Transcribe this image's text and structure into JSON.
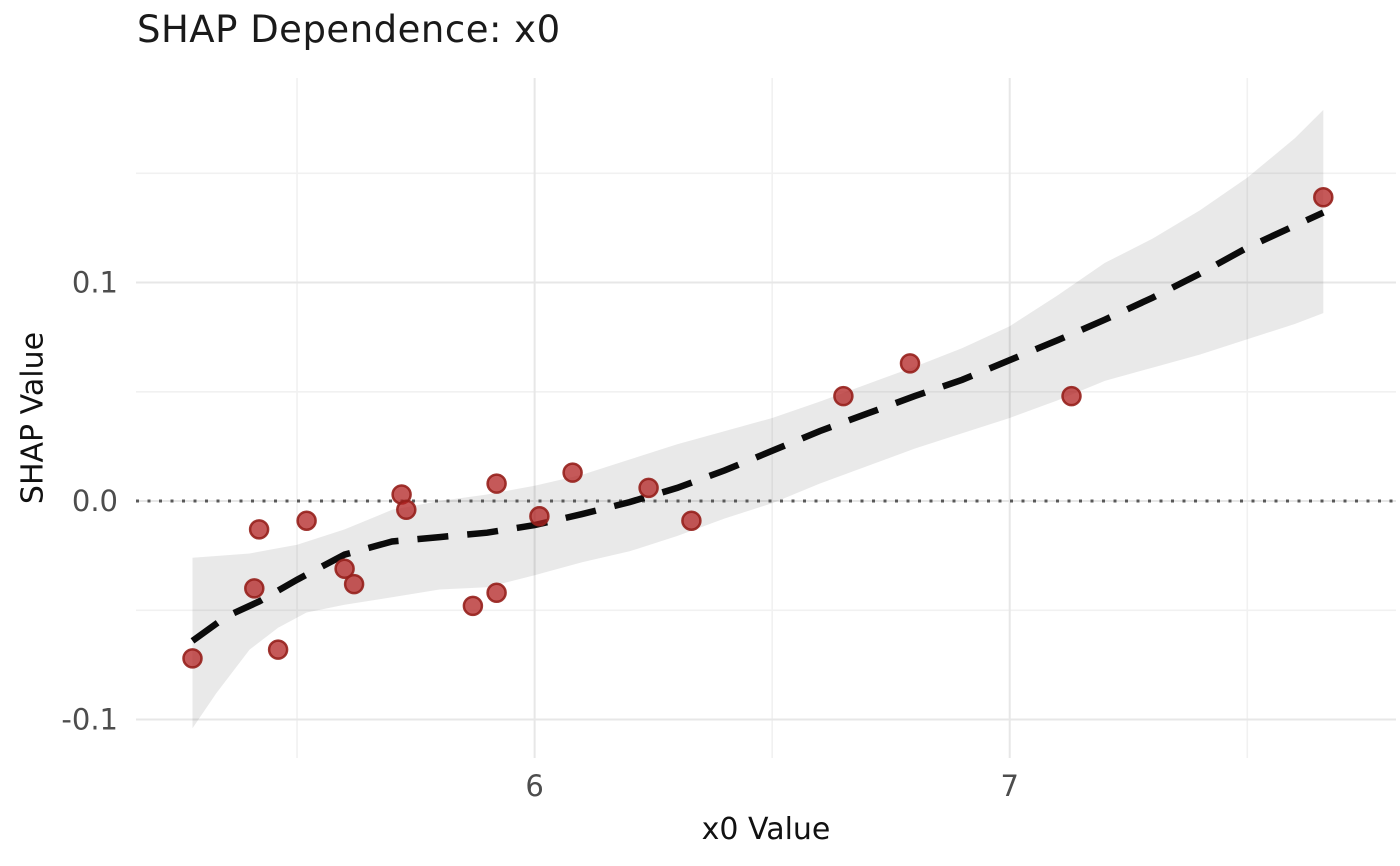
{
  "chart_data": {
    "type": "scatter",
    "title": "SHAP Dependence: x0",
    "xlabel": "x0 Value",
    "ylabel": "SHAP Value",
    "xlim": [
      5.161,
      7.813
    ],
    "ylim": [
      -0.1176,
      0.1936
    ],
    "grid": "major_and_minor",
    "legend_position": "none",
    "x_ticks": [
      {
        "value": 6,
        "label": "6"
      },
      {
        "value": 7,
        "label": "7"
      }
    ],
    "y_ticks": [
      {
        "value": -0.1,
        "label": "-0.1"
      },
      {
        "value": 0.0,
        "label": "0.0"
      },
      {
        "value": 0.1,
        "label": "0.1"
      }
    ],
    "x_minor_gridlines": [
      5.5,
      6.5,
      7.5
    ],
    "y_minor_gridlines": [
      -0.05,
      0.05,
      0.15
    ],
    "reference_line_y": 0.0,
    "points": [
      [
        5.28,
        -0.072
      ],
      [
        5.41,
        -0.04
      ],
      [
        5.42,
        -0.013
      ],
      [
        5.46,
        -0.068
      ],
      [
        5.52,
        -0.009
      ],
      [
        5.6,
        -0.031
      ],
      [
        5.62,
        -0.038
      ],
      [
        5.72,
        0.003
      ],
      [
        5.73,
        -0.004
      ],
      [
        5.87,
        -0.048
      ],
      [
        5.92,
        -0.042
      ],
      [
        5.92,
        0.008
      ],
      [
        6.01,
        -0.007
      ],
      [
        6.08,
        0.013
      ],
      [
        6.24,
        0.006
      ],
      [
        6.33,
        -0.009
      ],
      [
        6.65,
        0.048
      ],
      [
        6.79,
        0.063
      ],
      [
        7.13,
        0.048
      ],
      [
        7.66,
        0.139
      ]
    ],
    "smooth_line": [
      [
        5.28,
        -0.064
      ],
      [
        5.35,
        -0.053
      ],
      [
        5.42,
        -0.046
      ],
      [
        5.5,
        -0.036
      ],
      [
        5.6,
        -0.0245
      ],
      [
        5.7,
        -0.0185
      ],
      [
        5.8,
        -0.0165
      ],
      [
        5.9,
        -0.0145
      ],
      [
        6.0,
        -0.011
      ],
      [
        6.1,
        -0.006
      ],
      [
        6.2,
        -0.0005
      ],
      [
        6.3,
        0.006
      ],
      [
        6.4,
        0.014
      ],
      [
        6.5,
        0.023
      ],
      [
        6.6,
        0.032
      ],
      [
        6.7,
        0.04
      ],
      [
        6.8,
        0.048
      ],
      [
        6.9,
        0.0555
      ],
      [
        7.0,
        0.0645
      ],
      [
        7.1,
        0.0735
      ],
      [
        7.2,
        0.083
      ],
      [
        7.3,
        0.093
      ],
      [
        7.4,
        0.104
      ],
      [
        7.5,
        0.116
      ],
      [
        7.6,
        0.126
      ],
      [
        7.66,
        0.132
      ]
    ],
    "ci_upper": [
      [
        5.28,
        -0.026
      ],
      [
        5.4,
        -0.024
      ],
      [
        5.5,
        -0.02
      ],
      [
        5.6,
        -0.013
      ],
      [
        5.7,
        -0.004
      ],
      [
        5.8,
        0.0
      ],
      [
        5.9,
        0.003
      ],
      [
        6.0,
        0.007
      ],
      [
        6.1,
        0.012
      ],
      [
        6.2,
        0.019
      ],
      [
        6.3,
        0.026
      ],
      [
        6.4,
        0.032
      ],
      [
        6.5,
        0.038
      ],
      [
        6.6,
        0.0455
      ],
      [
        6.7,
        0.0535
      ],
      [
        6.8,
        0.0615
      ],
      [
        6.9,
        0.07
      ],
      [
        7.0,
        0.08
      ],
      [
        7.1,
        0.094
      ],
      [
        7.2,
        0.109
      ],
      [
        7.3,
        0.12
      ],
      [
        7.4,
        0.133
      ],
      [
        7.5,
        0.148
      ],
      [
        7.6,
        0.166
      ],
      [
        7.66,
        0.179
      ]
    ],
    "ci_lower": [
      [
        5.28,
        -0.104
      ],
      [
        5.33,
        -0.088
      ],
      [
        5.4,
        -0.068
      ],
      [
        5.46,
        -0.058
      ],
      [
        5.52,
        -0.051
      ],
      [
        5.6,
        -0.0475
      ],
      [
        5.7,
        -0.044
      ],
      [
        5.8,
        -0.0405
      ],
      [
        5.9,
        -0.0395
      ],
      [
        6.0,
        -0.034
      ],
      [
        6.1,
        -0.028
      ],
      [
        6.2,
        -0.023
      ],
      [
        6.3,
        -0.016
      ],
      [
        6.4,
        -0.008
      ],
      [
        6.5,
        -0.001
      ],
      [
        6.6,
        0.008
      ],
      [
        6.7,
        0.016
      ],
      [
        6.8,
        0.024
      ],
      [
        6.9,
        0.031
      ],
      [
        7.0,
        0.038
      ],
      [
        7.1,
        0.046
      ],
      [
        7.2,
        0.055
      ],
      [
        7.3,
        0.061
      ],
      [
        7.4,
        0.067
      ],
      [
        7.5,
        0.074
      ],
      [
        7.6,
        0.081
      ],
      [
        7.66,
        0.086
      ]
    ],
    "style": {
      "point_fill": "rgba(178,34,34,0.75)",
      "point_stroke": "rgba(150,32,28,0.9)",
      "point_radius": 9,
      "smooth_color": "#0b0b0b",
      "band_color": "rgba(0,0,0,0.085)",
      "zero_line_color": "#595959",
      "grid_major_color": "#e7e7e7",
      "grid_minor_color": "#f1f1f1",
      "tick_text_color": "#4d4d4d",
      "background": "#ffffff"
    }
  }
}
